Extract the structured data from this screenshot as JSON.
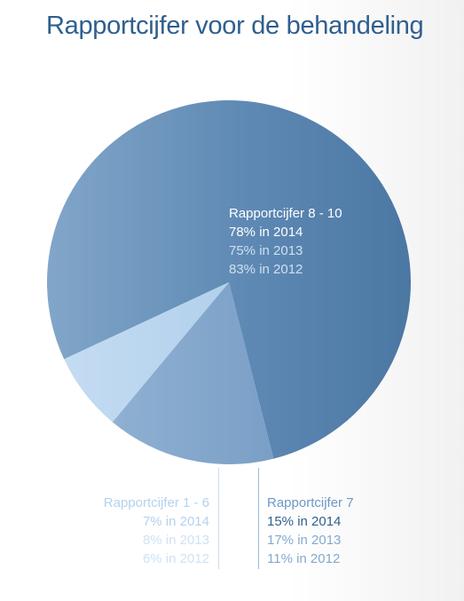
{
  "title": "Rapportcijfer voor de behandeling",
  "chart_data": {
    "type": "pie",
    "title": "Rapportcijfer voor de behandeling",
    "slices": [
      {
        "name": "Rapportcijfer 8 - 10",
        "value": 78,
        "year": 2014,
        "color": "#5b87b3",
        "lines": [
          "78% in 2014",
          "75% in 2013",
          "83% in 2012"
        ]
      },
      {
        "name": "Rapportcijfer 7",
        "value": 15,
        "year": 2014,
        "color": "#86a9cd",
        "lines": [
          "15% in 2014",
          "17% in 2013",
          "11% in 2012"
        ]
      },
      {
        "name": "Rapportcijfer 1 - 6",
        "value": 7,
        "year": 2014,
        "color": "#b8d4ee",
        "lines": [
          "7% in 2014",
          "8% in 2013",
          "6% in 2012"
        ]
      }
    ]
  }
}
